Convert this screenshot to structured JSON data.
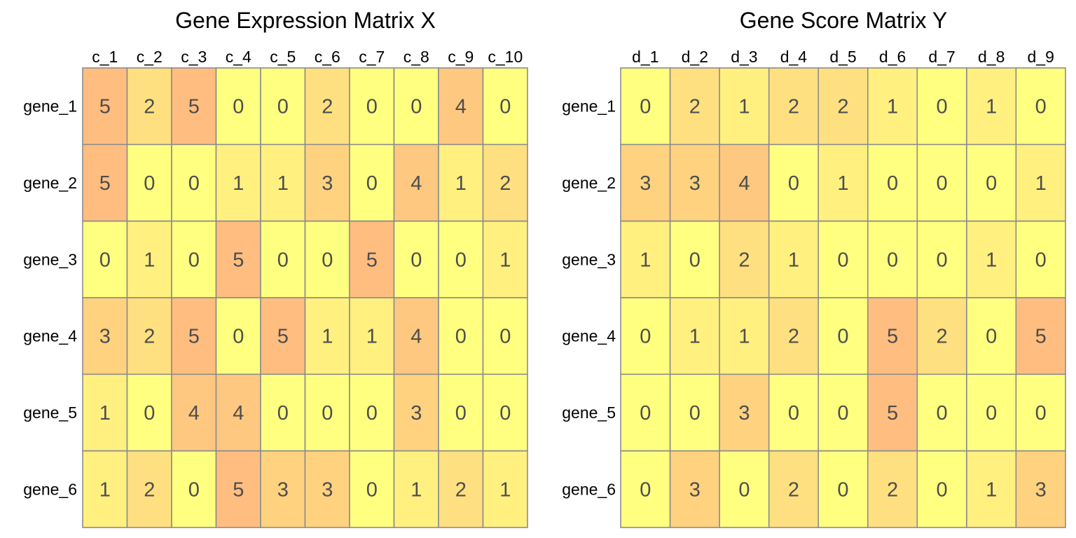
{
  "palette": [
    "#FFFF80",
    "#FFF080",
    "#FFE080",
    "#FFD280",
    "#FFC880",
    "#FFBE80"
  ],
  "chart_data": [
    {
      "type": "heatmap",
      "title": "Gene Expression Matrix X",
      "rows": [
        "gene_1",
        "gene_2",
        "gene_3",
        "gene_4",
        "gene_5",
        "gene_6"
      ],
      "columns": [
        "c_1",
        "c_2",
        "c_3",
        "c_4",
        "c_5",
        "c_6",
        "c_7",
        "c_8",
        "c_9",
        "c_10"
      ],
      "values": [
        [
          5,
          2,
          5,
          0,
          0,
          2,
          0,
          0,
          4,
          0
        ],
        [
          5,
          0,
          0,
          1,
          1,
          3,
          0,
          4,
          1,
          2
        ],
        [
          0,
          1,
          0,
          5,
          0,
          0,
          5,
          0,
          0,
          1
        ],
        [
          3,
          2,
          5,
          0,
          5,
          1,
          1,
          4,
          0,
          0
        ],
        [
          1,
          0,
          4,
          4,
          0,
          0,
          0,
          3,
          0,
          0
        ],
        [
          1,
          2,
          0,
          5,
          3,
          3,
          0,
          1,
          2,
          1
        ]
      ]
    },
    {
      "type": "heatmap",
      "title": "Gene Score Matrix Y",
      "rows": [
        "gene_1",
        "gene_2",
        "gene_3",
        "gene_4",
        "gene_5",
        "gene_6"
      ],
      "columns": [
        "d_1",
        "d_2",
        "d_3",
        "d_4",
        "d_5",
        "d_6",
        "d_7",
        "d_8",
        "d_9"
      ],
      "values": [
        [
          0,
          2,
          1,
          2,
          2,
          1,
          0,
          1,
          0
        ],
        [
          3,
          3,
          4,
          0,
          1,
          0,
          0,
          0,
          1
        ],
        [
          1,
          0,
          2,
          1,
          0,
          0,
          0,
          1,
          0
        ],
        [
          0,
          1,
          1,
          2,
          0,
          5,
          2,
          0,
          5
        ],
        [
          0,
          0,
          3,
          0,
          0,
          5,
          0,
          0,
          0
        ],
        [
          0,
          3,
          0,
          2,
          0,
          2,
          0,
          1,
          3
        ]
      ]
    }
  ]
}
